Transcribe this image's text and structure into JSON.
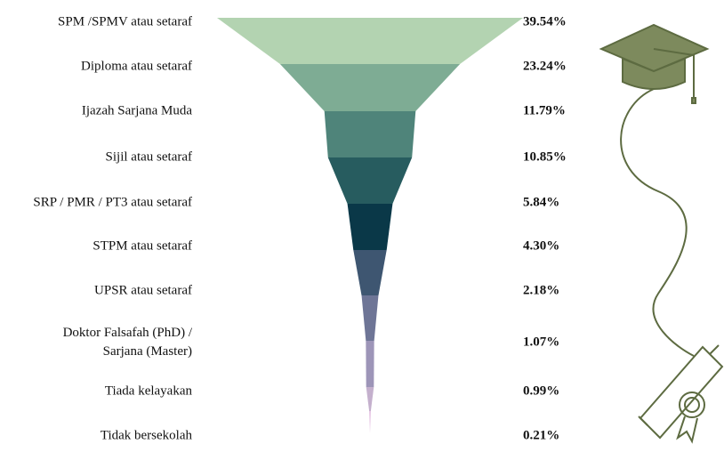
{
  "chart_data": {
    "type": "funnel",
    "categories": [
      "SPM /SPMV atau setaraf",
      "Diploma atau setaraf",
      "Ijazah Sarjana Muda",
      "Sijil atau setaraf",
      "SRP / PMR / PT3 atau setaraf",
      "STPM atau setaraf",
      "UPSR atau setaraf",
      "Doktor Falsafah (PhD) /\nSarjana (Master)",
      "Tiada kelayakan",
      "Tidak bersekolah"
    ],
    "values": [
      39.54,
      23.24,
      11.79,
      10.85,
      5.84,
      4.3,
      2.18,
      1.07,
      0.99,
      0.21
    ],
    "value_labels": [
      "39.54%",
      "23.24%",
      "11.79%",
      "10.85%",
      "5.84%",
      "4.30%",
      "2.18%",
      "1.07%",
      "0.99%",
      "0.21%"
    ],
    "colors": [
      "#b3d3b1",
      "#7eac94",
      "#4f847a",
      "#275c5f",
      "#0a3848",
      "#3e5671",
      "#6e7596",
      "#9d95b8",
      "#c4b0cd",
      "#e4c1e2"
    ]
  }
}
